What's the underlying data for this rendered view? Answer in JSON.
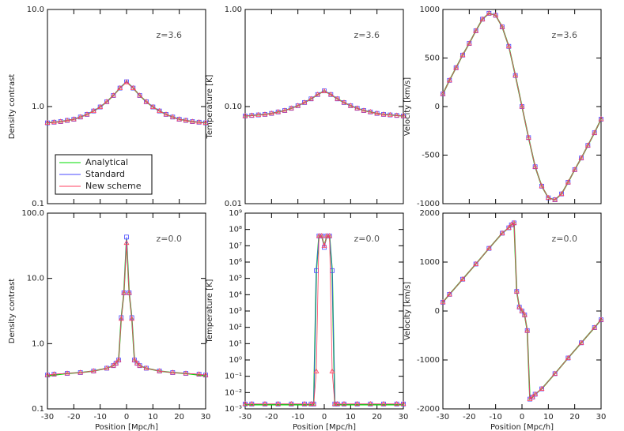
{
  "chart_data": [
    {
      "type": "line",
      "ylabel": "Density contrast",
      "annotation": "z=3.6",
      "log_y": true,
      "legend": "lower left",
      "x": [
        -30,
        -27.5,
        -25,
        -22.5,
        -20,
        -17.5,
        -15,
        -12.5,
        -10,
        -7.5,
        -5,
        -2.5,
        0,
        2.5,
        5,
        7.5,
        10,
        12.5,
        15,
        17.5,
        20,
        22.5,
        25,
        27.5,
        30
      ],
      "xlim": [
        -30,
        30
      ],
      "xticks": [
        -30,
        -20,
        -10,
        0,
        10,
        20,
        30
      ],
      "ylim": [
        0.1,
        10
      ],
      "yticks": [
        0.1,
        {
          "value": 1,
          "label": "1.0"
        },
        {
          "value": 10,
          "label": "10.0"
        }
      ],
      "series": [
        {
          "name": "Analytical",
          "color": "#00dd00",
          "marker": null,
          "values": [
            0.68,
            0.69,
            0.7,
            0.72,
            0.74,
            0.78,
            0.83,
            0.9,
            0.99,
            1.12,
            1.3,
            1.55,
            1.8,
            1.55,
            1.3,
            1.12,
            0.99,
            0.9,
            0.83,
            0.78,
            0.74,
            0.72,
            0.7,
            0.69,
            0.68
          ]
        },
        {
          "name": "Standard",
          "color": "#4848ff",
          "marker": "square",
          "values": [
            0.68,
            0.69,
            0.7,
            0.72,
            0.74,
            0.78,
            0.83,
            0.9,
            0.99,
            1.12,
            1.3,
            1.55,
            1.8,
            1.55,
            1.3,
            1.12,
            0.99,
            0.9,
            0.83,
            0.78,
            0.74,
            0.72,
            0.7,
            0.69,
            0.68
          ]
        },
        {
          "name": "New scheme",
          "color": "#ff4060",
          "marker": "triangle",
          "values": [
            0.68,
            0.69,
            0.7,
            0.72,
            0.74,
            0.78,
            0.83,
            0.9,
            0.99,
            1.12,
            1.3,
            1.55,
            1.78,
            1.55,
            1.3,
            1.12,
            0.99,
            0.9,
            0.83,
            0.78,
            0.74,
            0.72,
            0.7,
            0.69,
            0.68
          ]
        }
      ]
    },
    {
      "type": "line",
      "ylabel": "Temperature [K]",
      "annotation": "z=3.6",
      "log_y": true,
      "x": [
        -30,
        -27.5,
        -25,
        -22.5,
        -20,
        -17.5,
        -15,
        -12.5,
        -10,
        -7.5,
        -5,
        -2.5,
        0,
        2.5,
        5,
        7.5,
        10,
        12.5,
        15,
        17.5,
        20,
        22.5,
        25,
        27.5,
        30
      ],
      "xlim": [
        -30,
        30
      ],
      "xticks": [
        -30,
        -20,
        -10,
        0,
        10,
        20,
        30
      ],
      "ylim": [
        0.01,
        1
      ],
      "yticks": [
        0.01,
        {
          "value": 0.1,
          "label": "0.10"
        },
        {
          "value": 1,
          "label": "1.00"
        }
      ],
      "series": [
        {
          "color": "#00dd00",
          "marker": null,
          "values": [
            0.08,
            0.081,
            0.082,
            0.083,
            0.085,
            0.088,
            0.091,
            0.096,
            0.102,
            0.11,
            0.12,
            0.133,
            0.145,
            0.133,
            0.12,
            0.11,
            0.102,
            0.096,
            0.091,
            0.088,
            0.085,
            0.083,
            0.082,
            0.081,
            0.08
          ]
        },
        {
          "color": "#4848ff",
          "marker": "square",
          "values": [
            0.08,
            0.081,
            0.082,
            0.083,
            0.085,
            0.088,
            0.091,
            0.096,
            0.102,
            0.11,
            0.12,
            0.133,
            0.145,
            0.133,
            0.12,
            0.11,
            0.102,
            0.096,
            0.091,
            0.088,
            0.085,
            0.083,
            0.082,
            0.081,
            0.08
          ]
        },
        {
          "color": "#ff4060",
          "marker": "triangle",
          "values": [
            0.08,
            0.081,
            0.082,
            0.083,
            0.085,
            0.088,
            0.091,
            0.096,
            0.102,
            0.11,
            0.12,
            0.133,
            0.144,
            0.133,
            0.12,
            0.11,
            0.102,
            0.096,
            0.091,
            0.088,
            0.085,
            0.083,
            0.082,
            0.081,
            0.08
          ]
        }
      ]
    },
    {
      "type": "line",
      "ylabel": "Velocity [km/s]",
      "annotation": "z=3.6",
      "log_y": false,
      "x": [
        -30,
        -27.5,
        -25,
        -22.5,
        -20,
        -17.5,
        -15,
        -12.5,
        -10,
        -7.5,
        -5,
        -2.5,
        0,
        2.5,
        5,
        7.5,
        10,
        12.5,
        15,
        17.5,
        20,
        22.5,
        25,
        27.5,
        30
      ],
      "xlim": [
        -30,
        30
      ],
      "xticks": [
        -30,
        -20,
        -10,
        0,
        10,
        20,
        30
      ],
      "ylim": [
        -1000,
        1000
      ],
      "yticks": [
        -1000,
        -500,
        0,
        500,
        1000
      ],
      "series": [
        {
          "color": "#00dd00",
          "marker": null,
          "values": [
            130,
            270,
            400,
            530,
            650,
            780,
            900,
            960,
            940,
            820,
            620,
            320,
            0,
            -320,
            -620,
            -820,
            -940,
            -960,
            -900,
            -780,
            -650,
            -530,
            -400,
            -270,
            -130
          ]
        },
        {
          "color": "#4848ff",
          "marker": "square",
          "values": [
            130,
            270,
            400,
            530,
            650,
            780,
            900,
            960,
            940,
            820,
            620,
            320,
            0,
            -320,
            -620,
            -820,
            -940,
            -960,
            -900,
            -780,
            -650,
            -530,
            -400,
            -270,
            -130
          ]
        },
        {
          "color": "#ff4060",
          "marker": "triangle",
          "values": [
            130,
            270,
            400,
            530,
            650,
            780,
            900,
            960,
            940,
            820,
            620,
            320,
            0,
            -320,
            -620,
            -820,
            -940,
            -960,
            -900,
            -780,
            -650,
            -530,
            -400,
            -270,
            -130
          ]
        }
      ]
    },
    {
      "type": "line",
      "ylabel": "Density contrast",
      "xlabel": "Position [Mpc/h]",
      "annotation": "z=0.0",
      "log_y": true,
      "x": [
        -30,
        -27.5,
        -22.5,
        -17.5,
        -12.5,
        -7.5,
        -5,
        -4,
        -3,
        -2,
        -1,
        0,
        1,
        2,
        3,
        4,
        5,
        7.5,
        12.5,
        17.5,
        22.5,
        27.5,
        30
      ],
      "xlim": [
        -30,
        30
      ],
      "xticks": [
        -30,
        -20,
        -10,
        0,
        10,
        20,
        30
      ],
      "ylim": [
        0.1,
        100
      ],
      "yticks": [
        0.1,
        {
          "value": 1,
          "label": "1.0"
        },
        {
          "value": 10,
          "label": "10.0"
        },
        {
          "value": 100,
          "label": "100.0"
        }
      ],
      "series": [
        {
          "color": "#00dd00",
          "marker": null,
          "values": [
            0.32,
            0.33,
            0.35,
            0.36,
            0.38,
            0.42,
            0.46,
            0.5,
            0.56,
            2.5,
            6,
            40,
            6,
            2.5,
            0.56,
            0.5,
            0.46,
            0.42,
            0.38,
            0.36,
            0.35,
            0.33,
            0.32
          ]
        },
        {
          "color": "#4848ff",
          "marker": "square",
          "values": [
            0.33,
            0.34,
            0.35,
            0.36,
            0.38,
            0.42,
            0.46,
            0.5,
            0.56,
            2.5,
            6,
            43,
            6,
            2.5,
            0.56,
            0.5,
            0.46,
            0.42,
            0.38,
            0.36,
            0.35,
            0.34,
            0.33
          ]
        },
        {
          "color": "#ff4060",
          "marker": "triangle",
          "values": [
            0.33,
            0.34,
            0.35,
            0.36,
            0.38,
            0.42,
            0.46,
            0.5,
            0.56,
            2.4,
            6,
            35,
            6,
            2.4,
            0.56,
            0.5,
            0.46,
            0.42,
            0.38,
            0.36,
            0.35,
            0.34,
            0.33
          ]
        }
      ]
    },
    {
      "type": "line",
      "ylabel": "Temperature [K]",
      "xlabel": "Position [Mpc/h]",
      "annotation": "z=0.0",
      "log_y": true,
      "x": [
        -30,
        -27.5,
        -22.5,
        -17.5,
        -12.5,
        -7.5,
        -5,
        -4,
        -3,
        -2,
        -1,
        0,
        1,
        2,
        3,
        4,
        5,
        7.5,
        12.5,
        17.5,
        22.5,
        27.5,
        30
      ],
      "xlim": [
        -30,
        30
      ],
      "xticks": [
        -30,
        -20,
        -10,
        0,
        10,
        20,
        30
      ],
      "ylim": [
        0.001,
        1000000000
      ],
      "yticks": [
        {
          "value": 0.001,
          "label": "10⁻³"
        },
        {
          "value": 0.01,
          "label": "10⁻²"
        },
        {
          "value": 0.1,
          "label": "10⁻¹"
        },
        {
          "value": 1,
          "label": "10⁰"
        },
        {
          "value": 10,
          "label": "10¹"
        },
        {
          "value": 100,
          "label": "10²"
        },
        {
          "value": 1000,
          "label": "10³"
        },
        {
          "value": 10000,
          "label": "10⁴"
        },
        {
          "value": 100000,
          "label": "10⁵"
        },
        {
          "value": 1000000,
          "label": "10⁶"
        },
        {
          "value": 10000000,
          "label": "10⁷"
        },
        {
          "value": 100000000,
          "label": "10⁸"
        },
        {
          "value": 1000000000,
          "label": "10⁹"
        }
      ],
      "series": [
        {
          "color": "#00dd00",
          "marker": null,
          "values": [
            0.0018,
            0.0018,
            0.0018,
            0.0018,
            0.0018,
            0.0018,
            0.0018,
            0.0018,
            300000,
            40000000,
            40000000,
            10000000,
            40000000,
            40000000,
            300000,
            0.0018,
            0.0018,
            0.0018,
            0.0018,
            0.0018,
            0.0018,
            0.0018,
            0.0018
          ]
        },
        {
          "color": "#4848ff",
          "marker": "square",
          "values": [
            0.002,
            0.002,
            0.002,
            0.002,
            0.002,
            0.002,
            0.002,
            0.002,
            300000,
            40000000,
            40000000,
            8000000,
            40000000,
            40000000,
            300000,
            0.002,
            0.002,
            0.002,
            0.002,
            0.002,
            0.002,
            0.002,
            0.002
          ]
        },
        {
          "color": "#ff4060",
          "marker": "triangle",
          "values": [
            0.002,
            0.002,
            0.002,
            0.002,
            0.002,
            0.002,
            0.002,
            0.002,
            0.2,
            40000000,
            40000000,
            10000000,
            40000000,
            40000000,
            0.2,
            0.002,
            0.002,
            0.002,
            0.002,
            0.002,
            0.002,
            0.002,
            0.002
          ]
        }
      ]
    },
    {
      "type": "line",
      "ylabel": "Velocity [km/s]",
      "xlabel": "Position [Mpc/h]",
      "annotation": "z=0.0",
      "log_y": false,
      "x": [
        -30,
        -27.5,
        -22.5,
        -17.5,
        -12.5,
        -7.5,
        -5,
        -4,
        -3,
        -2,
        -1,
        0,
        1,
        2,
        3,
        4,
        5,
        7.5,
        12.5,
        17.5,
        22.5,
        27.5,
        30
      ],
      "xlim": [
        -30,
        30
      ],
      "xticks": [
        -30,
        -20,
        -10,
        0,
        10,
        20,
        30
      ],
      "ylim": [
        -2000,
        2000
      ],
      "yticks": [
        -2000,
        -1000,
        0,
        1000,
        2000
      ],
      "series": [
        {
          "color": "#00dd00",
          "marker": null,
          "values": [
            180,
            340,
            650,
            960,
            1280,
            1590,
            1700,
            1760,
            1800,
            400,
            80,
            0,
            -80,
            -400,
            -1800,
            -1760,
            -1700,
            -1590,
            -1280,
            -960,
            -650,
            -340,
            -180
          ]
        },
        {
          "color": "#4848ff",
          "marker": "square",
          "values": [
            180,
            340,
            650,
            960,
            1280,
            1590,
            1700,
            1760,
            1800,
            400,
            80,
            0,
            -80,
            -400,
            -1800,
            -1760,
            -1700,
            -1590,
            -1280,
            -960,
            -650,
            -340,
            -180
          ]
        },
        {
          "color": "#ff4060",
          "marker": "triangle",
          "values": [
            180,
            340,
            650,
            960,
            1280,
            1590,
            1700,
            1760,
            1800,
            400,
            80,
            0,
            -80,
            -400,
            -1800,
            -1760,
            -1700,
            -1590,
            -1280,
            -960,
            -650,
            -340,
            -180
          ]
        }
      ]
    }
  ]
}
